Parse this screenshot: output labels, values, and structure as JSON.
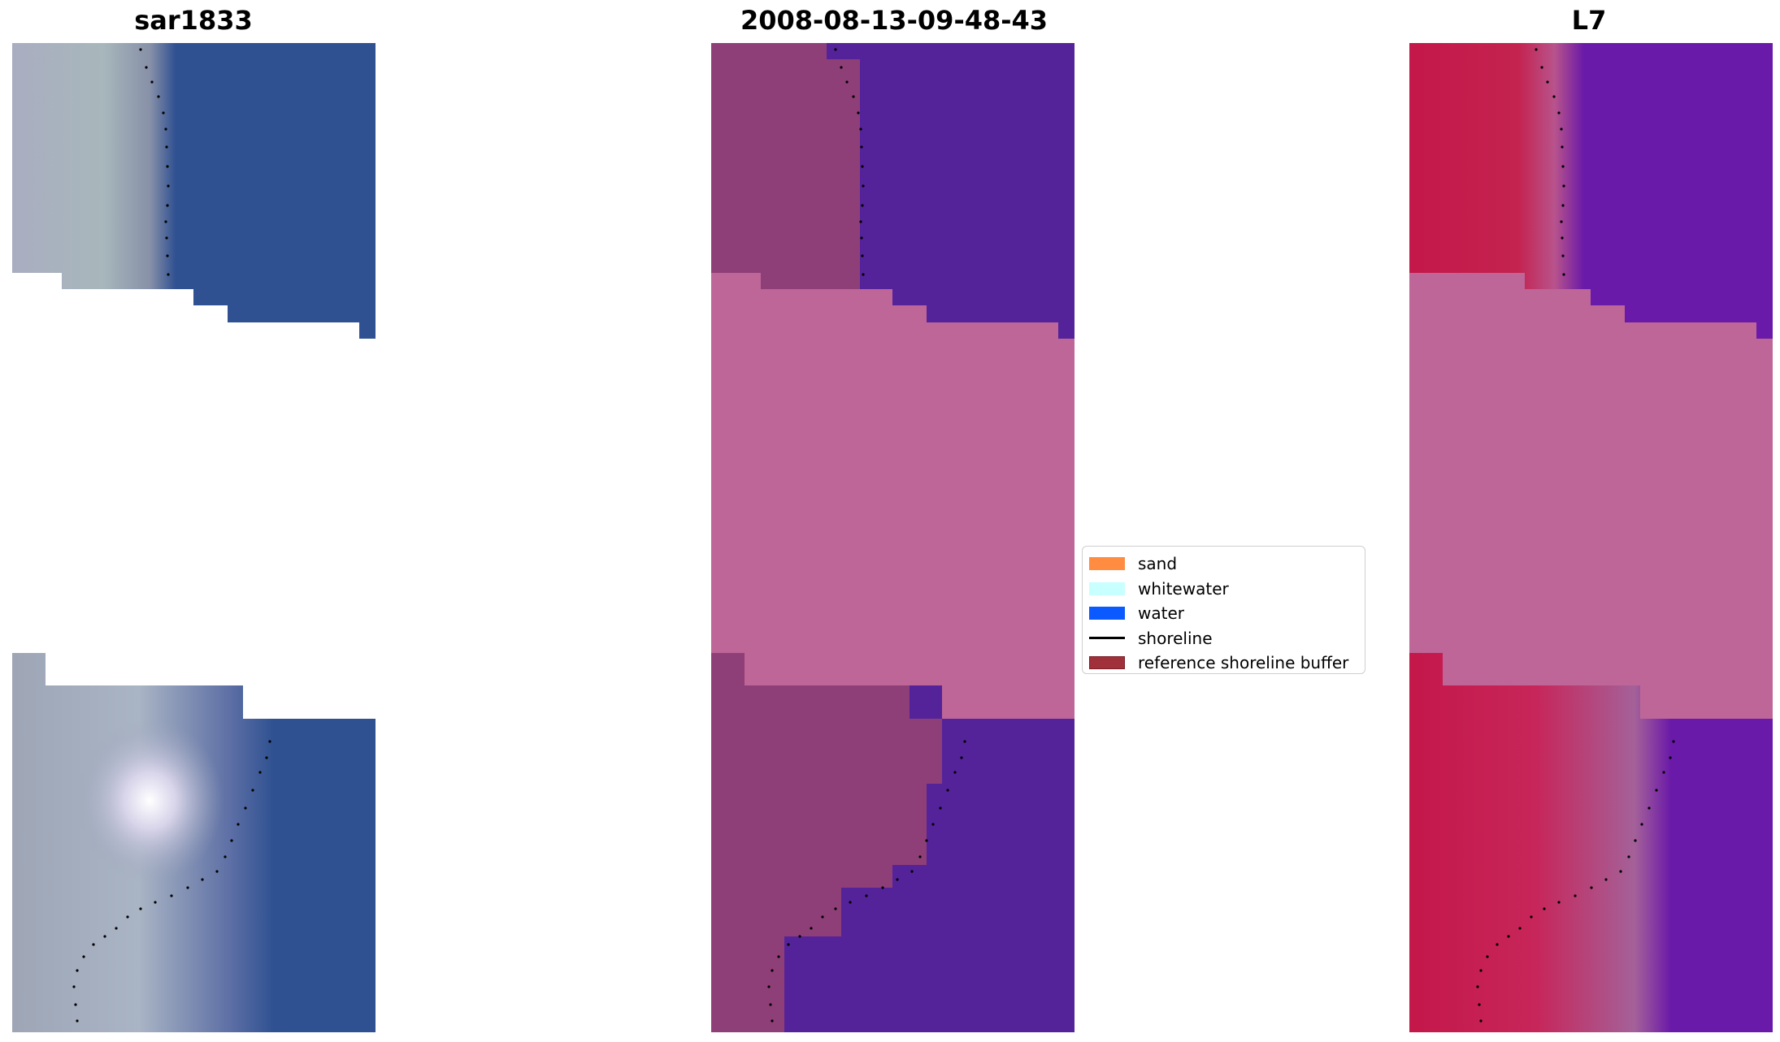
{
  "panels": [
    {
      "title": "sar1833"
    },
    {
      "title": "2008-08-13-09-48-43"
    },
    {
      "title": "L7"
    }
  ],
  "legend": {
    "items": [
      {
        "label": "sand",
        "type": "patch",
        "color": "#ff8c40"
      },
      {
        "label": "whitewater",
        "type": "patch",
        "color": "#c8ffff"
      },
      {
        "label": "water",
        "type": "patch",
        "color": "#0a5aff"
      },
      {
        "label": "shoreline",
        "type": "line",
        "color": "#000000"
      },
      {
        "label": "reference shoreline buffer",
        "type": "patch",
        "color": "#a0303a"
      }
    ]
  },
  "colors": {
    "masked_area": "#bd6697",
    "sar_water": "#2f5191",
    "classified_water": "#54239a",
    "classified_land": "#8f3f77",
    "l7_land": "#c4174a",
    "l7_water": "#6a1aa8"
  }
}
